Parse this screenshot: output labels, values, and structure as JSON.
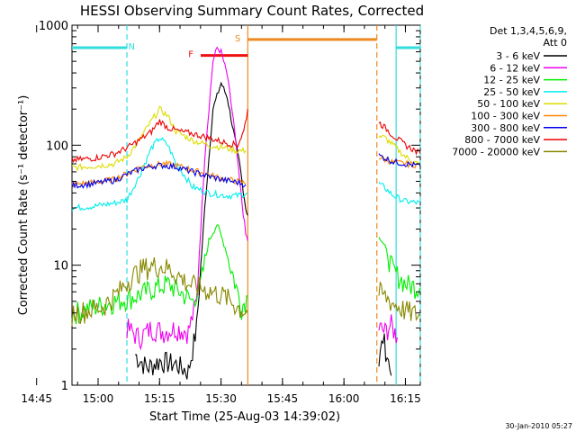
{
  "chart_data": {
    "type": "line",
    "title": "HESSI Observing Summary Count Rates, Corrected",
    "xlabel": "Start Time (25-Aug-03 14:39:02)",
    "ylabel": "Corrected Count Rate (s⁻¹ detector⁻¹)",
    "yscale": "log",
    "ylim": [
      1,
      1000
    ],
    "xlim_minutes": [
      14.6,
      99.6
    ],
    "x_unit": "minutes after 14:39:02",
    "x_ticks": [
      "14:45",
      "15:00",
      "15:15",
      "15:30",
      "15:45",
      "16:00",
      "16:15"
    ],
    "y_ticks": [
      "1",
      "10",
      "100",
      "1000"
    ],
    "grid": false,
    "legend_position": "right",
    "legend_header": [
      "Det 1,3,4,5,6,9,",
      "Att 0"
    ],
    "timestamp": "30-Jan-2010 05:27",
    "annotations": [
      {
        "label": "N",
        "color": "#33dddd",
        "spans": [
          [
            14.6,
            28.0
          ],
          [
            93.7,
            99.6
          ]
        ],
        "y": 650
      },
      {
        "label": "F",
        "color": "#ee1111",
        "spans": [
          [
            46.0,
            57.5
          ]
        ],
        "y": 560
      },
      {
        "label": "S",
        "color": "#ee8822",
        "spans": [
          [
            57.5,
            89.0
          ]
        ],
        "y": 760
      }
    ],
    "vlines": [
      {
        "x": 28.0,
        "color": "#33dddd",
        "style": "dashed"
      },
      {
        "x": 57.5,
        "color": "#ee8822",
        "style": "solid"
      },
      {
        "x": 89.0,
        "color": "#ee8822",
        "style": "dashed"
      },
      {
        "x": 93.7,
        "color": "#33dddd",
        "style": "solid"
      },
      {
        "x": 99.6,
        "color": "#33dddd",
        "style": "dashed"
      }
    ],
    "series": [
      {
        "name": "3 - 6 keV",
        "color": "#000000",
        "segments": [
          [
            [
              30,
              1.8
            ],
            [
              33,
              1.4
            ],
            [
              36,
              1.6
            ],
            [
              40,
              1.5
            ],
            [
              43,
              1.3
            ],
            [
              45,
              3
            ],
            [
              47,
              30
            ],
            [
              49,
              200
            ],
            [
              51,
              330
            ],
            [
              52.5,
              250
            ],
            [
              54,
              130
            ],
            [
              55.5,
              70
            ],
            [
              57,
              30
            ],
            [
              57.5,
              26
            ]
          ],
          [
            [
              89.5,
              1.5
            ],
            [
              90.5,
              2.5
            ],
            [
              91.5,
              1.8
            ],
            [
              92.5,
              1.2
            ]
          ]
        ]
      },
      {
        "name": "6 - 12 keV",
        "color": "#ee00ee",
        "segments": [
          [
            [
              28,
              3
            ],
            [
              31,
              2.5
            ],
            [
              34,
              3
            ],
            [
              37,
              2.8
            ],
            [
              40,
              3
            ],
            [
              43,
              2.8
            ],
            [
              45,
              5
            ],
            [
              47,
              80
            ],
            [
              49,
              500
            ],
            [
              50,
              650
            ],
            [
              51,
              600
            ],
            [
              52.5,
              380
            ],
            [
              54,
              160
            ],
            [
              55.5,
              50
            ],
            [
              57,
              18
            ],
            [
              57.5,
              16
            ]
          ],
          [
            [
              89.5,
              3
            ],
            [
              91,
              2.8
            ],
            [
              92.5,
              3.2
            ],
            [
              94,
              2.5
            ]
          ]
        ]
      },
      {
        "name": "12 - 25 keV",
        "color": "#00ee00",
        "segments": [
          [
            [
              14.6,
              4
            ],
            [
              20,
              4.5
            ],
            [
              25,
              5
            ],
            [
              30,
              5.5
            ],
            [
              35,
              6.5
            ],
            [
              38,
              7
            ],
            [
              41,
              6
            ],
            [
              44,
              5
            ],
            [
              46,
              7
            ],
            [
              48,
              16
            ],
            [
              50,
              22
            ],
            [
              52,
              14
            ],
            [
              54,
              8
            ],
            [
              56,
              4.5
            ],
            [
              57.5,
              5.5
            ]
          ],
          [
            [
              89.5,
              18
            ],
            [
              91,
              14
            ],
            [
              93,
              9
            ],
            [
              96,
              7
            ],
            [
              99.6,
              6.5
            ]
          ]
        ]
      },
      {
        "name": "25 - 50 keV",
        "color": "#00eeee",
        "segments": [
          [
            [
              14.6,
              30
            ],
            [
              20,
              31
            ],
            [
              25,
              33
            ],
            [
              28,
              35
            ],
            [
              31,
              55
            ],
            [
              34,
              95
            ],
            [
              36,
              115
            ],
            [
              38,
              100
            ],
            [
              40,
              70
            ],
            [
              44,
              45
            ],
            [
              48,
              40
            ],
            [
              52,
              38
            ],
            [
              55,
              38
            ],
            [
              57.5,
              40
            ]
          ],
          [
            [
              89.5,
              48
            ],
            [
              91,
              44
            ],
            [
              93,
              38
            ],
            [
              96,
              34
            ],
            [
              99.6,
              33
            ]
          ]
        ]
      },
      {
        "name": "50 - 100 keV",
        "color": "#dddd00",
        "segments": [
          [
            [
              14.6,
              65
            ],
            [
              20,
              67
            ],
            [
              25,
              70
            ],
            [
              28,
              80
            ],
            [
              31,
              110
            ],
            [
              34,
              160
            ],
            [
              36,
              200
            ],
            [
              38,
              175
            ],
            [
              40,
              130
            ],
            [
              44,
              110
            ],
            [
              48,
              100
            ],
            [
              52,
              95
            ],
            [
              55,
              90
            ],
            [
              57,
              90
            ]
          ],
          [
            [
              89.5,
              120
            ],
            [
              91,
              115
            ],
            [
              93,
              100
            ],
            [
              96,
              80
            ],
            [
              99.6,
              68
            ]
          ]
        ]
      },
      {
        "name": "100 - 300 keV",
        "color": "#ff8800",
        "segments": [
          [
            [
              14.6,
              47
            ],
            [
              20,
              49
            ],
            [
              25,
              52
            ],
            [
              28,
              58
            ],
            [
              31,
              65
            ],
            [
              34,
              68
            ],
            [
              37,
              70
            ],
            [
              40,
              68
            ],
            [
              44,
              62
            ],
            [
              48,
              57
            ],
            [
              52,
              52
            ],
            [
              55,
              50
            ],
            [
              57,
              48
            ]
          ],
          [
            [
              89.5,
              80
            ],
            [
              91,
              76
            ],
            [
              93,
              72
            ],
            [
              96,
              70
            ],
            [
              99.6,
              68
            ]
          ]
        ]
      },
      {
        "name": "300 - 800 keV",
        "color": "#0000ee",
        "segments": [
          [
            [
              14.6,
              46
            ],
            [
              20,
              48
            ],
            [
              25,
              51
            ],
            [
              28,
              57
            ],
            [
              31,
              63
            ],
            [
              34,
              67
            ],
            [
              37,
              68
            ],
            [
              40,
              66
            ],
            [
              44,
              60
            ],
            [
              48,
              55
            ],
            [
              52,
              51
            ],
            [
              55,
              49
            ],
            [
              57,
              47
            ]
          ],
          [
            [
              89.5,
              82
            ],
            [
              91,
              78
            ],
            [
              93,
              73
            ],
            [
              96,
              70
            ],
            [
              99.6,
              67
            ]
          ]
        ]
      },
      {
        "name": "800 - 7000 keV",
        "color": "#ee0000",
        "segments": [
          [
            [
              14.6,
              75
            ],
            [
              20,
              78
            ],
            [
              25,
              85
            ],
            [
              28,
              95
            ],
            [
              31,
              110
            ],
            [
              34,
              130
            ],
            [
              36,
              160
            ],
            [
              38,
              140
            ],
            [
              41,
              130
            ],
            [
              44,
              125
            ],
            [
              48,
              115
            ],
            [
              52,
              105
            ],
            [
              55,
              100
            ],
            [
              56.5,
              130
            ],
            [
              57.5,
              200
            ]
          ],
          [
            [
              89.5,
              155
            ],
            [
              91,
              140
            ],
            [
              93,
              120
            ],
            [
              96,
              100
            ],
            [
              99.6,
              85
            ]
          ]
        ]
      },
      {
        "name": "7000 - 20000 keV",
        "color": "#888800",
        "segments": [
          [
            [
              14.6,
              4
            ],
            [
              18,
              4.2
            ],
            [
              22,
              4.5
            ],
            [
              26,
              6
            ],
            [
              29,
              8
            ],
            [
              32,
              9.5
            ],
            [
              35,
              10
            ],
            [
              38,
              9.5
            ],
            [
              40,
              8.5
            ],
            [
              43,
              7
            ],
            [
              46,
              6.5
            ],
            [
              49,
              6
            ],
            [
              52,
              5.5
            ],
            [
              55,
              4.5
            ],
            [
              57.5,
              4
            ]
          ],
          [
            [
              89.5,
              6
            ],
            [
              91,
              5.5
            ],
            [
              93,
              4.8
            ],
            [
              96,
              4.2
            ],
            [
              99.6,
              3.8
            ]
          ]
        ]
      }
    ]
  }
}
